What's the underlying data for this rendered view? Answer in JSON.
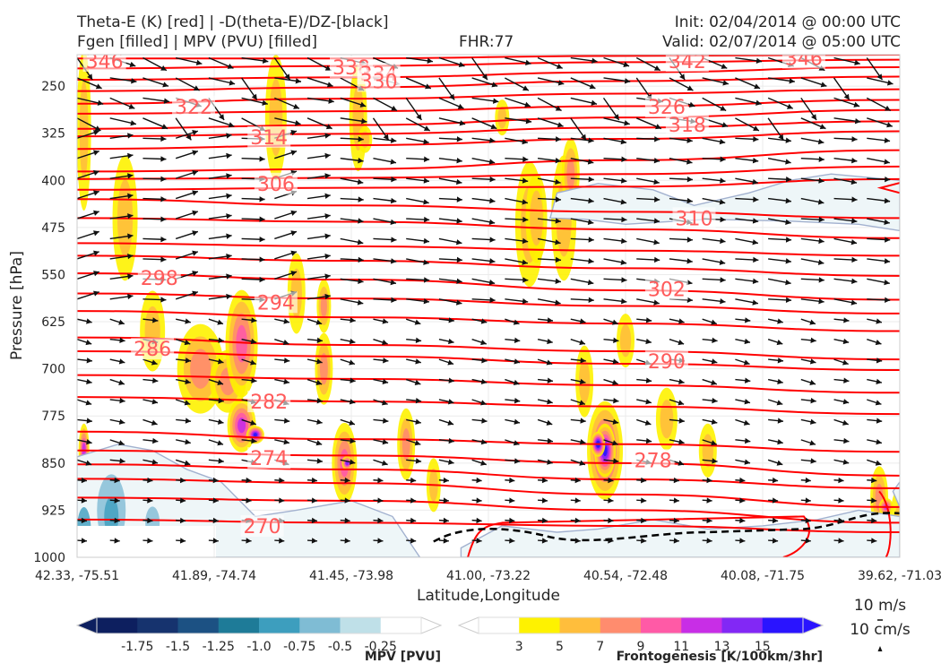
{
  "header": {
    "title_line1": "Theta-E (K) [red] | -D(theta-E)/DZ-[black]",
    "title_line2": "Fgen [filled] | MPV (PVU) [filled]",
    "fhr": "FHR:77",
    "init": "Init: 02/04/2014 @ 00:00 UTC",
    "valid": "Valid: 02/07/2014 @ 05:00 UTC"
  },
  "colors": {
    "theta_e": "#ff0000",
    "vectors": "#111111",
    "mpv_contour": "#a2b1cf",
    "stability_contour": "#000000",
    "mpv_scale": [
      "#0d1f5f",
      "#16336e",
      "#1c5183",
      "#1e7b98",
      "#3d9ebe",
      "#7fbcd4",
      "#bfe0e8",
      "#ffffff"
    ],
    "fgen_scale": [
      "#ffffff",
      "#fef200",
      "#ffbe3c",
      "#ff8c6e",
      "#ff5aa6",
      "#c82ee6",
      "#8228f5",
      "#2a14ff"
    ]
  },
  "chart_data": {
    "type": "cross-section",
    "xlabel": "Latitude,Longitude",
    "ylabel": "Pressure [hPa]",
    "x_ticks": [
      "42.33, -75.51",
      "41.89, -74.74",
      "41.45, -73.98",
      "41.00, -73.22",
      "40.54, -72.48",
      "40.08, -71.75",
      "39.62, -71.03"
    ],
    "y_ticks": [
      250,
      325,
      400,
      475,
      550,
      625,
      700,
      775,
      850,
      925,
      1000
    ],
    "ylim": [
      1000,
      200
    ],
    "theta_e_labels": [
      {
        "value": "346",
        "x": 0.2,
        "p": 210
      },
      {
        "value": "338",
        "x": 2.0,
        "p": 220
      },
      {
        "value": "334",
        "x": 2.2,
        "p": 230
      },
      {
        "value": "330",
        "x": 2.2,
        "p": 242
      },
      {
        "value": "342",
        "x": 4.45,
        "p": 210
      },
      {
        "value": "346",
        "x": 5.3,
        "p": 205
      },
      {
        "value": "322",
        "x": 0.85,
        "p": 283
      },
      {
        "value": "326",
        "x": 4.3,
        "p": 283
      },
      {
        "value": "314",
        "x": 1.4,
        "p": 331
      },
      {
        "value": "318",
        "x": 4.45,
        "p": 311
      },
      {
        "value": "306",
        "x": 1.45,
        "p": 405
      },
      {
        "value": "310",
        "x": 4.5,
        "p": 460
      },
      {
        "value": "298",
        "x": 0.6,
        "p": 555
      },
      {
        "value": "302",
        "x": 4.3,
        "p": 573
      },
      {
        "value": "294",
        "x": 1.45,
        "p": 594
      },
      {
        "value": "286",
        "x": 0.55,
        "p": 668
      },
      {
        "value": "290",
        "x": 4.3,
        "p": 688
      },
      {
        "value": "282",
        "x": 1.4,
        "p": 752
      },
      {
        "value": "278",
        "x": 4.2,
        "p": 845
      },
      {
        "value": "274",
        "x": 1.4,
        "p": 842
      },
      {
        "value": "270",
        "x": 1.35,
        "p": 950
      }
    ],
    "colorbars": [
      {
        "label": "MPV [PVU]",
        "ticks": [
          "-1.75",
          "-1.5",
          "-1.25",
          "-1.0",
          "-0.75",
          "-0.5",
          "-0.25"
        ]
      },
      {
        "label": "Frontogenesis [K/100km/3hr]",
        "ticks": [
          "3",
          "5",
          "7",
          "9",
          "11",
          "13",
          "15"
        ]
      }
    ],
    "vector_keys": [
      "10 m/s",
      "10 cm/s"
    ]
  }
}
